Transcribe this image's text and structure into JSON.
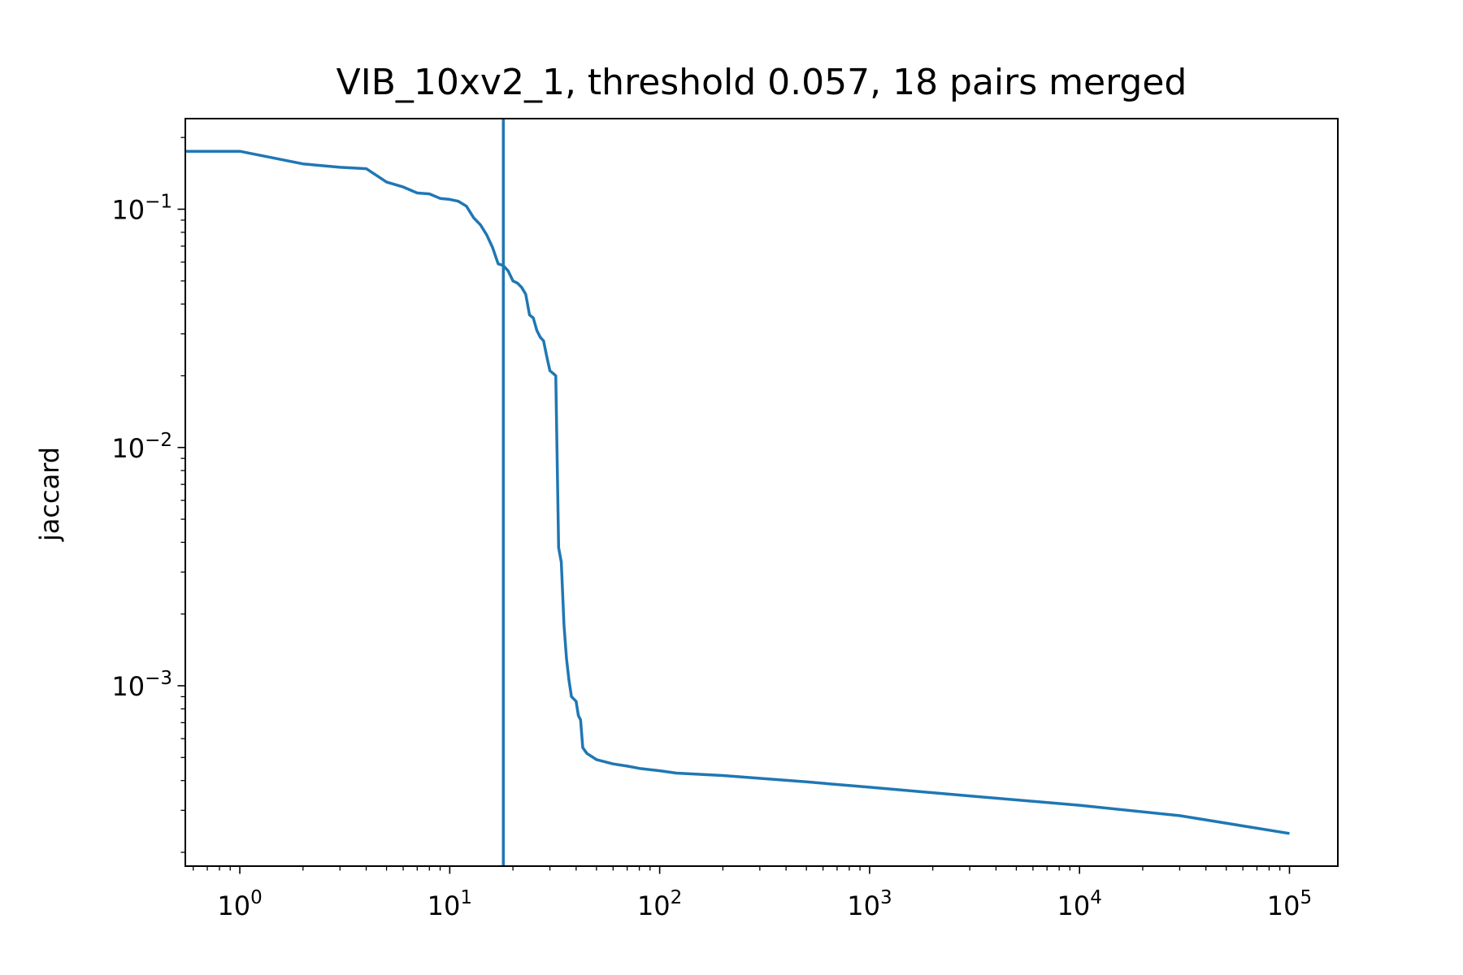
{
  "chart_data": {
    "type": "line",
    "title": "VIB_10xv2_1, threshold 0.057, 18 pairs merged",
    "xlabel": "",
    "ylabel": "jaccard",
    "x_scale": "log",
    "y_scale": "log",
    "xlim": [
      0.55,
      170000
    ],
    "ylim": [
      0.000175,
      0.24
    ],
    "grid": false,
    "x_ticks": [
      {
        "value": 1,
        "base": "10",
        "exp": "0"
      },
      {
        "value": 10,
        "base": "10",
        "exp": "1"
      },
      {
        "value": 100,
        "base": "10",
        "exp": "2"
      },
      {
        "value": 1000,
        "base": "10",
        "exp": "3"
      },
      {
        "value": 10000,
        "base": "10",
        "exp": "4"
      },
      {
        "value": 100000,
        "base": "10",
        "exp": "5"
      }
    ],
    "y_ticks": [
      {
        "value": 0.1,
        "base": "10",
        "exp": "−1"
      },
      {
        "value": 0.01,
        "base": "10",
        "exp": "−2"
      },
      {
        "value": 0.001,
        "base": "10",
        "exp": "−3"
      }
    ],
    "vline": {
      "x": 18,
      "color": "#1f77b4"
    },
    "series": [
      {
        "color": "#1f77b4",
        "x": [
          0.55,
          1,
          2,
          3,
          4,
          5,
          6,
          7,
          8,
          9,
          10,
          11,
          12,
          13,
          14,
          15,
          16,
          17,
          18,
          19,
          20,
          21,
          22,
          23,
          24,
          25,
          26,
          27,
          28,
          29,
          30,
          31,
          32,
          33,
          34,
          35,
          36,
          37,
          38,
          39,
          40,
          41,
          42,
          43,
          45,
          50,
          60,
          70,
          80,
          100,
          120,
          200,
          500,
          1000,
          3000,
          10000,
          30000,
          100000
        ],
        "y": [
          0.175,
          0.175,
          0.155,
          0.15,
          0.148,
          0.13,
          0.124,
          0.117,
          0.116,
          0.111,
          0.11,
          0.108,
          0.103,
          0.092,
          0.086,
          0.078,
          0.069,
          0.059,
          0.058,
          0.055,
          0.05,
          0.049,
          0.047,
          0.044,
          0.036,
          0.035,
          0.031,
          0.029,
          0.028,
          0.024,
          0.021,
          0.0205,
          0.02,
          0.0038,
          0.0033,
          0.0018,
          0.0013,
          0.00105,
          0.0009,
          0.00088,
          0.00086,
          0.00075,
          0.00072,
          0.00055,
          0.00052,
          0.00049,
          0.00047,
          0.00046,
          0.00045,
          0.00044,
          0.00043,
          0.00042,
          0.000395,
          0.000375,
          0.000345,
          0.000315,
          0.000285,
          0.00024
        ]
      }
    ]
  }
}
